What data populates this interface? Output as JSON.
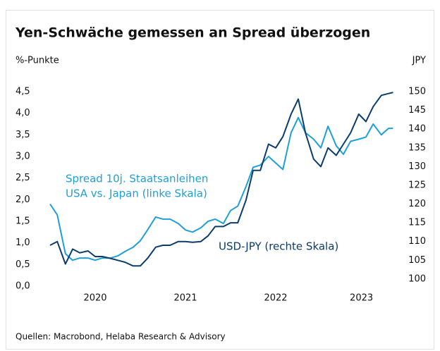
{
  "chart_data": {
    "type": "line",
    "title": "Yen-Schwäche gemessen an Spread überzogen",
    "ylabel": "%-Punkte",
    "y2label": "JPY",
    "source": "Quellen: Macrobond, Helaba Research & Advisory",
    "xlim": [
      2019.95,
      2023.85
    ],
    "xticks": [
      {
        "value": 2020.5,
        "label": "2020"
      },
      {
        "value": 2021.5,
        "label": "2021"
      },
      {
        "value": 2022.5,
        "label": "2022"
      },
      {
        "value": 2023.45,
        "label": "2023"
      }
    ],
    "ylim": [
      0,
      4.5
    ],
    "yticks": [
      {
        "value": 0,
        "label": "0,0"
      },
      {
        "value": 0.5,
        "label": "0,5"
      },
      {
        "value": 1,
        "label": "1,0"
      },
      {
        "value": 1.5,
        "label": "1,5"
      },
      {
        "value": 2,
        "label": "2,0"
      },
      {
        "value": 2.5,
        "label": "2,5"
      },
      {
        "value": 3,
        "label": "3,0"
      },
      {
        "value": 3.5,
        "label": "3,5"
      },
      {
        "value": 4,
        "label": "4,0"
      },
      {
        "value": 4.5,
        "label": "4,5"
      }
    ],
    "y2lim": [
      98.1,
      150
    ],
    "y2ticks": [
      100,
      105,
      110,
      115,
      120,
      125,
      130,
      135,
      140,
      145,
      150
    ],
    "x": [
      2020.0,
      2020.08,
      2020.17,
      2020.25,
      2020.33,
      2020.42,
      2020.5,
      2020.58,
      2020.67,
      2020.75,
      2020.83,
      2020.92,
      2021.0,
      2021.08,
      2021.17,
      2021.25,
      2021.33,
      2021.42,
      2021.5,
      2021.58,
      2021.67,
      2021.75,
      2021.83,
      2021.92,
      2022.0,
      2022.08,
      2022.17,
      2022.25,
      2022.33,
      2022.42,
      2022.5,
      2022.58,
      2022.67,
      2022.75,
      2022.83,
      2022.92,
      2023.0,
      2023.08,
      2023.17,
      2023.25,
      2023.33,
      2023.42,
      2023.5,
      2023.58,
      2023.67,
      2023.75,
      2023.8
    ],
    "series": [
      {
        "label_lines": [
          "Spread 10j. Staatsanleihen",
          "USA vs. Japan (linke Skala)"
        ],
        "color": "#1e9fdb",
        "axis": "y",
        "values": [
          1.9,
          1.65,
          0.75,
          0.6,
          0.65,
          0.65,
          0.6,
          0.65,
          0.65,
          0.7,
          0.8,
          0.9,
          1.05,
          1.3,
          1.6,
          1.55,
          1.55,
          1.45,
          1.3,
          1.25,
          1.35,
          1.5,
          1.55,
          1.45,
          1.75,
          1.85,
          2.3,
          2.75,
          2.8,
          3.0,
          2.85,
          2.7,
          3.55,
          3.9,
          3.55,
          3.4,
          3.2,
          3.7,
          3.25,
          3.05,
          3.35,
          3.4,
          3.45,
          3.75,
          3.5,
          3.65,
          3.65
        ]
      },
      {
        "label_lines": [
          "USD-JPY (rechte Skala)"
        ],
        "color": "#0b3c6b",
        "axis": "y2",
        "values": [
          109,
          110,
          104,
          108,
          107,
          107.5,
          106,
          106,
          105.5,
          105,
          104.5,
          103.5,
          103.5,
          105.5,
          108.5,
          109,
          109,
          110,
          110,
          109.8,
          110,
          111.5,
          114,
          114,
          115,
          115,
          121,
          129,
          129,
          136,
          135,
          138,
          144,
          148,
          139,
          132,
          130,
          135,
          133,
          136,
          139,
          144,
          142,
          146,
          149,
          149.5,
          149.8
        ]
      }
    ]
  }
}
